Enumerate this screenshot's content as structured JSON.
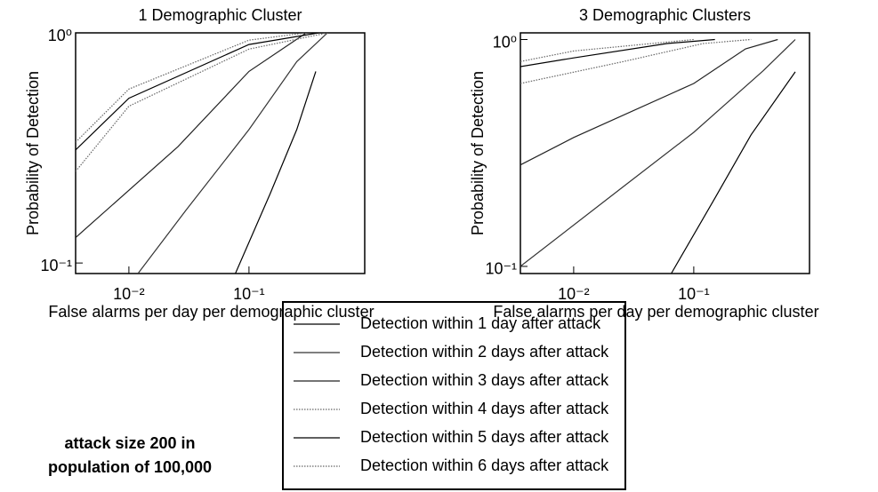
{
  "chart_data": [
    {
      "type": "line",
      "title": "1 Demographic Cluster",
      "xlabel": "False alarms per day per demographic cluster",
      "ylabel": "Probability of Detection",
      "xscale": "log",
      "yscale": "log",
      "xlim": [
        0.0036,
        0.92
      ],
      "ylim": [
        0.09,
        1
      ],
      "xticks": [
        {
          "value": 0.01,
          "label": "10⁻²"
        },
        {
          "value": 0.1,
          "label": "10⁻¹"
        }
      ],
      "yticks": [
        {
          "value": 0.1,
          "label": "10⁻¹"
        },
        {
          "value": 1,
          "label": "10⁰"
        }
      ],
      "series": [
        {
          "name": "Detection within 1 day after attack",
          "color": "#000000",
          "line_style": "solid",
          "x": [
            0.077,
            0.15,
            0.25,
            0.36
          ],
          "values": [
            0.09,
            0.2,
            0.38,
            0.68
          ]
        },
        {
          "name": "Detection within 2 days after attack",
          "color": "#333333",
          "line_style": "solid",
          "x": [
            0.0119,
            0.03,
            0.1,
            0.25,
            0.45
          ],
          "values": [
            0.09,
            0.17,
            0.38,
            0.75,
            1
          ]
        },
        {
          "name": "Detection within 3 days after attack",
          "color": "#222222",
          "line_style": "solid",
          "x": [
            0.0036,
            0.0256,
            0.1,
            0.3
          ],
          "values": [
            0.129,
            0.32,
            0.68,
            1
          ]
        },
        {
          "name": "Detection within 4 days after attack",
          "color": "#666666",
          "line_style": "dotted",
          "x": [
            0.0036,
            0.01,
            0.1,
            0.45
          ],
          "values": [
            0.25,
            0.48,
            0.85,
            1
          ]
        },
        {
          "name": "Detection within 5 days after attack",
          "color": "#000000",
          "line_style": "solid",
          "x": [
            0.0036,
            0.01,
            0.1,
            0.38
          ],
          "values": [
            0.31,
            0.52,
            0.89,
            1
          ]
        },
        {
          "name": "Detection within 6 days after attack",
          "color": "#666666",
          "line_style": "dotted",
          "x": [
            0.0036,
            0.01,
            0.1,
            0.3
          ],
          "values": [
            0.335,
            0.57,
            0.93,
            1
          ]
        }
      ]
    },
    {
      "type": "line",
      "title": "3 Demographic Clusters",
      "xlabel": "False alarms per day per demographic cluster",
      "ylabel": "Probability of Detection",
      "xscale": "log",
      "yscale": "log",
      "xlim": [
        0.0036,
        0.92
      ],
      "ylim": [
        0.093,
        1.07
      ],
      "xticks": [
        {
          "value": 0.01,
          "label": "10⁻²"
        },
        {
          "value": 0.1,
          "label": "10⁻¹"
        }
      ],
      "yticks": [
        {
          "value": 0.1,
          "label": "10⁻¹"
        },
        {
          "value": 1,
          "label": "10⁰"
        }
      ],
      "series": [
        {
          "color": "#000000",
          "line_style": "solid",
          "x": [
            0.065,
            0.15,
            0.3,
            0.7
          ],
          "values": [
            0.093,
            0.2,
            0.38,
            0.72
          ]
        },
        {
          "color": "#333333",
          "line_style": "solid",
          "x": [
            0.0036,
            0.026,
            0.1,
            0.38,
            0.7
          ],
          "values": [
            0.1,
            0.225,
            0.39,
            0.73,
            1
          ]
        },
        {
          "color": "#222222",
          "line_style": "solid",
          "x": [
            0.0036,
            0.01,
            0.1,
            0.27,
            0.5
          ],
          "values": [
            0.28,
            0.37,
            0.64,
            0.91,
            1
          ]
        },
        {
          "color": "#666666",
          "line_style": "dotted",
          "x": [
            0.0036,
            0.026,
            0.12,
            0.3
          ],
          "values": [
            0.64,
            0.8,
            0.96,
            1
          ]
        },
        {
          "color": "#000000",
          "line_style": "solid",
          "x": [
            0.0036,
            0.01,
            0.06,
            0.15
          ],
          "values": [
            0.76,
            0.83,
            0.96,
            1
          ]
        },
        {
          "color": "#666666",
          "line_style": "dotted",
          "x": [
            0.0036,
            0.01,
            0.1
          ],
          "values": [
            0.8,
            0.89,
            1
          ]
        }
      ]
    }
  ],
  "annotation": [
    "attack size 200 in",
    "population of 100,000"
  ]
}
